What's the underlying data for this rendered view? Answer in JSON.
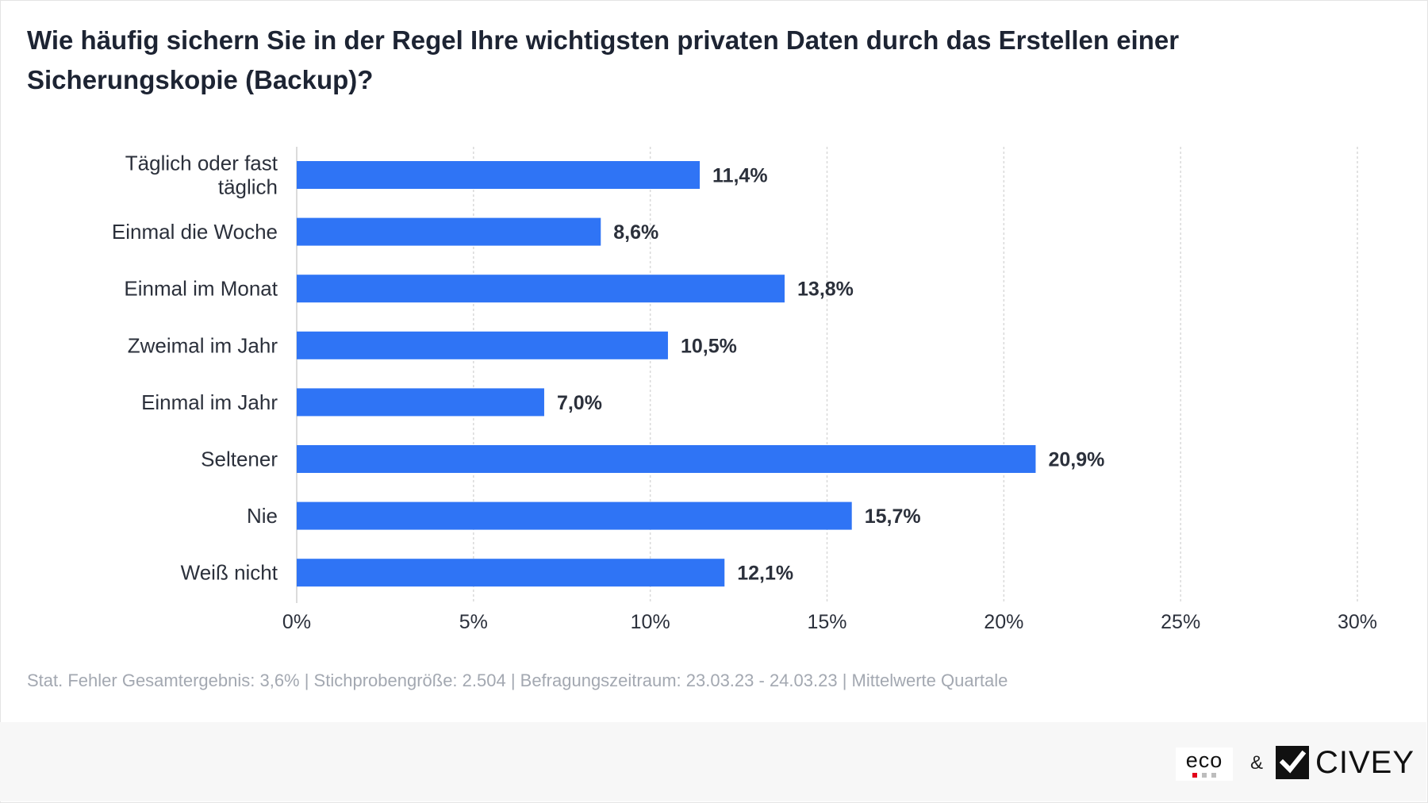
{
  "title": "Wie häufig sichern Sie in der Regel Ihre wichtigsten privaten Daten durch das Erstellen einer Sicherungskopie (Backup)?",
  "footnote": "Stat. Fehler Gesamtergebnis: 3,6% | Stichprobengröße: 2.504 | Befragungszeitraum: 23.03.23 - 24.03.23 | Mittelwerte Quartale",
  "footer": {
    "logo_eco": "eco",
    "ampersand": "&",
    "logo_civey": "CIVEY"
  },
  "colors": {
    "bar": "#2f74f5",
    "title": "#1d2433",
    "text": "#2b303b",
    "grid": "#d9d9d9",
    "muted": "#a3a8b1"
  },
  "chart_data": {
    "type": "bar",
    "orientation": "horizontal",
    "categories": [
      "Täglich oder fast täglich",
      "Einmal die Woche",
      "Einmal im Monat",
      "Zweimal im Jahr",
      "Einmal im Jahr",
      "Seltener",
      "Nie",
      "Weiß nicht"
    ],
    "values": [
      11.4,
      8.6,
      13.8,
      10.5,
      7.0,
      20.9,
      15.7,
      12.1
    ],
    "value_labels": [
      "11,4%",
      "8,6%",
      "13,8%",
      "10,5%",
      "7,0%",
      "20,9%",
      "15,7%",
      "12,1%"
    ],
    "xlim": [
      0,
      30
    ],
    "xticks": [
      0,
      5,
      10,
      15,
      20,
      25,
      30
    ],
    "xtick_labels": [
      "0%",
      "5%",
      "10%",
      "15%",
      "20%",
      "25%",
      "30%"
    ],
    "grid": "vertical dashed",
    "legend": "none"
  }
}
